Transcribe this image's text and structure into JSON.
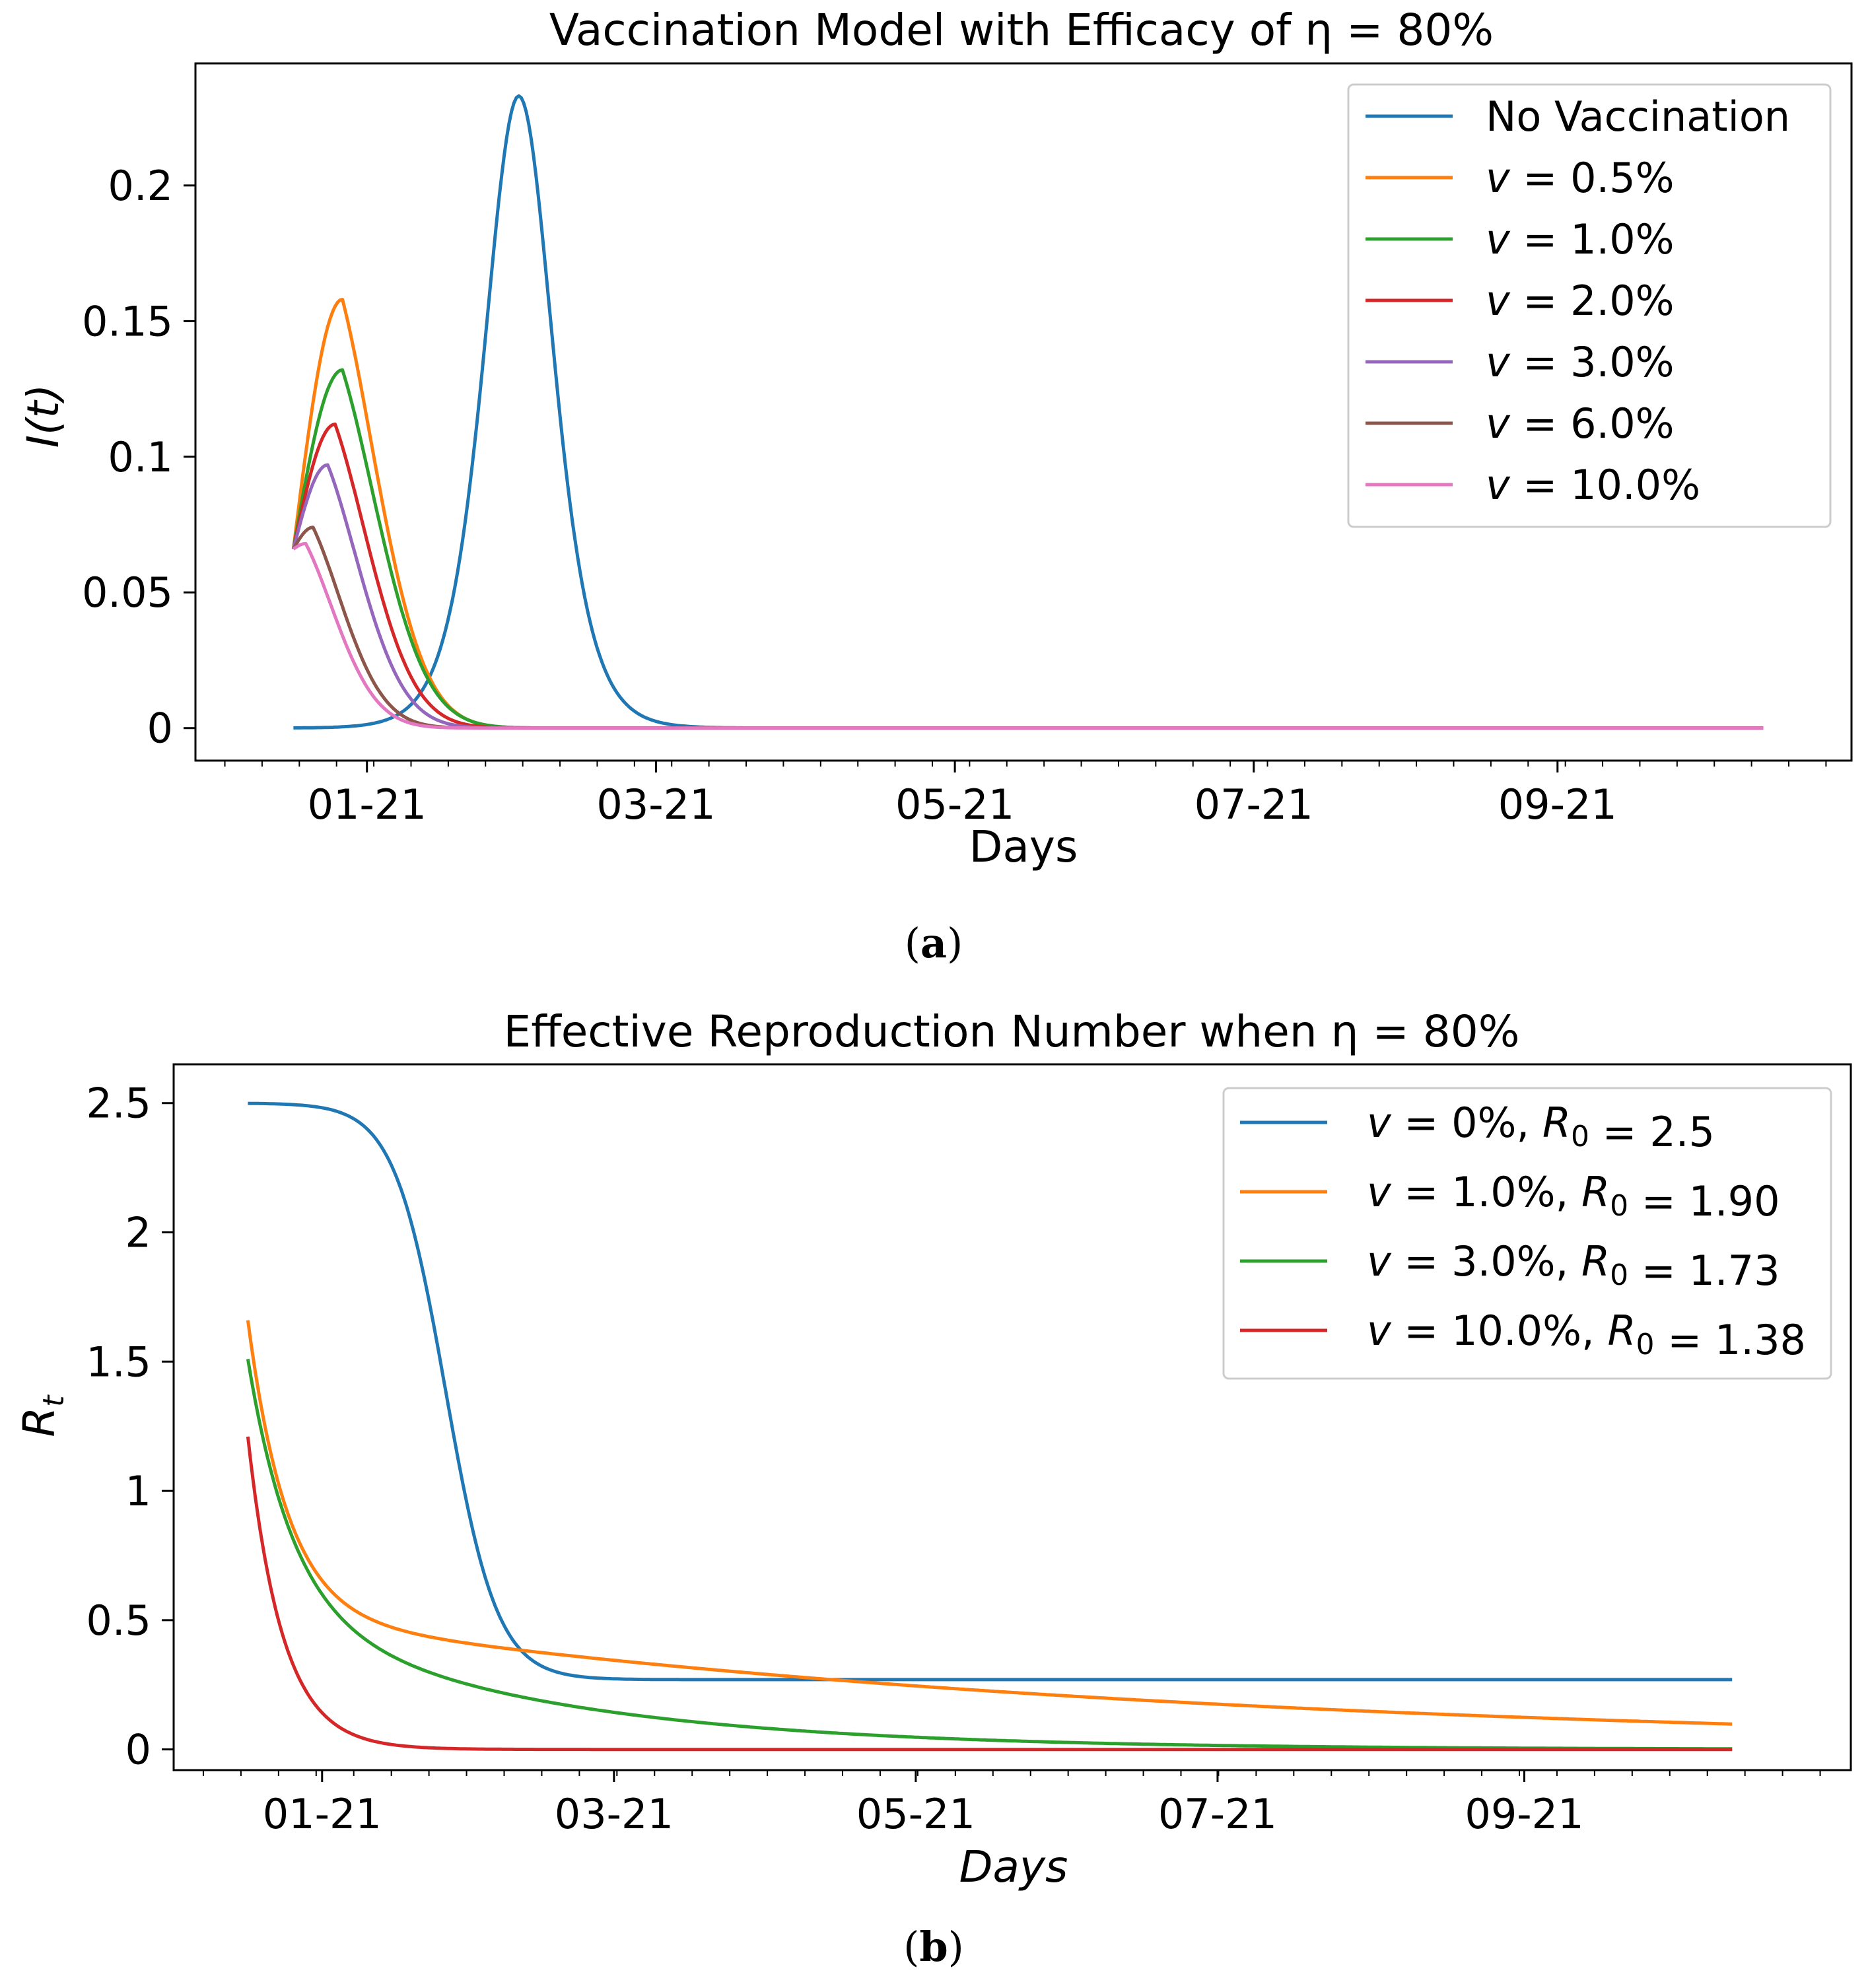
{
  "chart_data": [
    {
      "type": "line",
      "title": "Vaccination Model with Efficacy of η = 80%",
      "xlabel": "Days",
      "ylabel": "I(t)",
      "xlim": [
        -20,
        318
      ],
      "ylim": [
        -0.012,
        0.245
      ],
      "x_ticks": [
        {
          "day": 15,
          "label": "01-21"
        },
        {
          "day": 74,
          "label": "03-21"
        },
        {
          "day": 135,
          "label": "05-21"
        },
        {
          "day": 196,
          "label": "07-21"
        },
        {
          "day": 258,
          "label": "09-21"
        }
      ],
      "y_ticks": [
        {
          "value": 0,
          "label": "0"
        },
        {
          "value": 0.05,
          "label": "0.05"
        },
        {
          "value": 0.1,
          "label": "0.1"
        },
        {
          "value": 0.15,
          "label": "0.15"
        },
        {
          "value": 0.2,
          "label": "0.2"
        }
      ],
      "x_range_days": [
        0,
        300
      ],
      "legend": "upper right",
      "series": [
        {
          "name": "No Vaccination",
          "math": false,
          "color": "#1f77b4",
          "model": "late_peak",
          "peak": 0.233,
          "peak_day": 46,
          "width_days": 8.5
        },
        {
          "name": "v = 0.5%",
          "math": true,
          "color": "#ff7f0e",
          "model": "early_peak",
          "start": 0.066,
          "peak": 0.158,
          "peak_day": 10,
          "decay_days": 8.0
        },
        {
          "name": "v = 1.0%",
          "math": true,
          "color": "#2ca02c",
          "model": "early_peak",
          "start": 0.066,
          "peak": 0.132,
          "peak_day": 10,
          "decay_days": 8.2
        },
        {
          "name": "v = 2.0%",
          "math": true,
          "color": "#d62728",
          "model": "early_peak",
          "start": 0.066,
          "peak": 0.112,
          "peak_day": 8.5,
          "decay_days": 7.8
        },
        {
          "name": "v = 3.0%",
          "math": true,
          "color": "#9467bd",
          "model": "early_peak",
          "start": 0.066,
          "peak": 0.097,
          "peak_day": 7,
          "decay_days": 7.5
        },
        {
          "name": "v = 6.0%",
          "math": true,
          "color": "#8c564b",
          "model": "early_peak",
          "start": 0.066,
          "peak": 0.074,
          "peak_day": 4,
          "decay_days": 7.0
        },
        {
          "name": "v = 10.0%",
          "math": true,
          "color": "#e377c2",
          "model": "early_peak",
          "start": 0.066,
          "peak": 0.068,
          "peak_day": 2.5,
          "decay_days": 7.0
        }
      ],
      "caption": "(a)"
    },
    {
      "type": "line",
      "title": "Effective Reproduction Number when η = 80%",
      "xlabel": "Days",
      "ylabel": "R_t",
      "xlim": [
        -15,
        324
      ],
      "ylim": [
        -0.08,
        2.65
      ],
      "x_ticks": [
        {
          "day": 15,
          "label": "01-21"
        },
        {
          "day": 74,
          "label": "03-21"
        },
        {
          "day": 135,
          "label": "05-21"
        },
        {
          "day": 196,
          "label": "07-21"
        },
        {
          "day": 258,
          "label": "09-21"
        }
      ],
      "y_ticks": [
        {
          "value": 0,
          "label": "0"
        },
        {
          "value": 0.5,
          "label": "0.5"
        },
        {
          "value": 1,
          "label": "1"
        },
        {
          "value": 1.5,
          "label": "1.5"
        },
        {
          "value": 2,
          "label": "2"
        },
        {
          "value": 2.5,
          "label": "2.5"
        }
      ],
      "x_range_days": [
        0,
        300
      ],
      "legend": "upper right",
      "series": [
        {
          "name": "v = 0%, R0 = 2.5",
          "color": "#1f77b4",
          "model": "logistic",
          "start": 2.5,
          "end": 0.27,
          "mid_day": 40,
          "scale_days": 5.2
        },
        {
          "name": "v = 1.0%, R0 = 1.90",
          "color": "#ff7f0e",
          "model": "two_exp",
          "start": 1.66,
          "a1": 1.14,
          "tau1": 8.0,
          "a2": 0.52,
          "tau2": 180
        },
        {
          "name": "v = 3.0%, R0 = 1.73",
          "color": "#2ca02c",
          "model": "two_exp",
          "start": 1.51,
          "a1": 0.96,
          "tau1": 9.0,
          "a2": 0.55,
          "tau2": 55
        },
        {
          "name": "v = 10.0%, R0 = 1.38",
          "color": "#d62728",
          "model": "two_exp",
          "start": 1.21,
          "a1": 1.21,
          "tau1": 7.0,
          "a2": 0.0,
          "tau2": 1
        }
      ],
      "caption": "(b)"
    }
  ]
}
